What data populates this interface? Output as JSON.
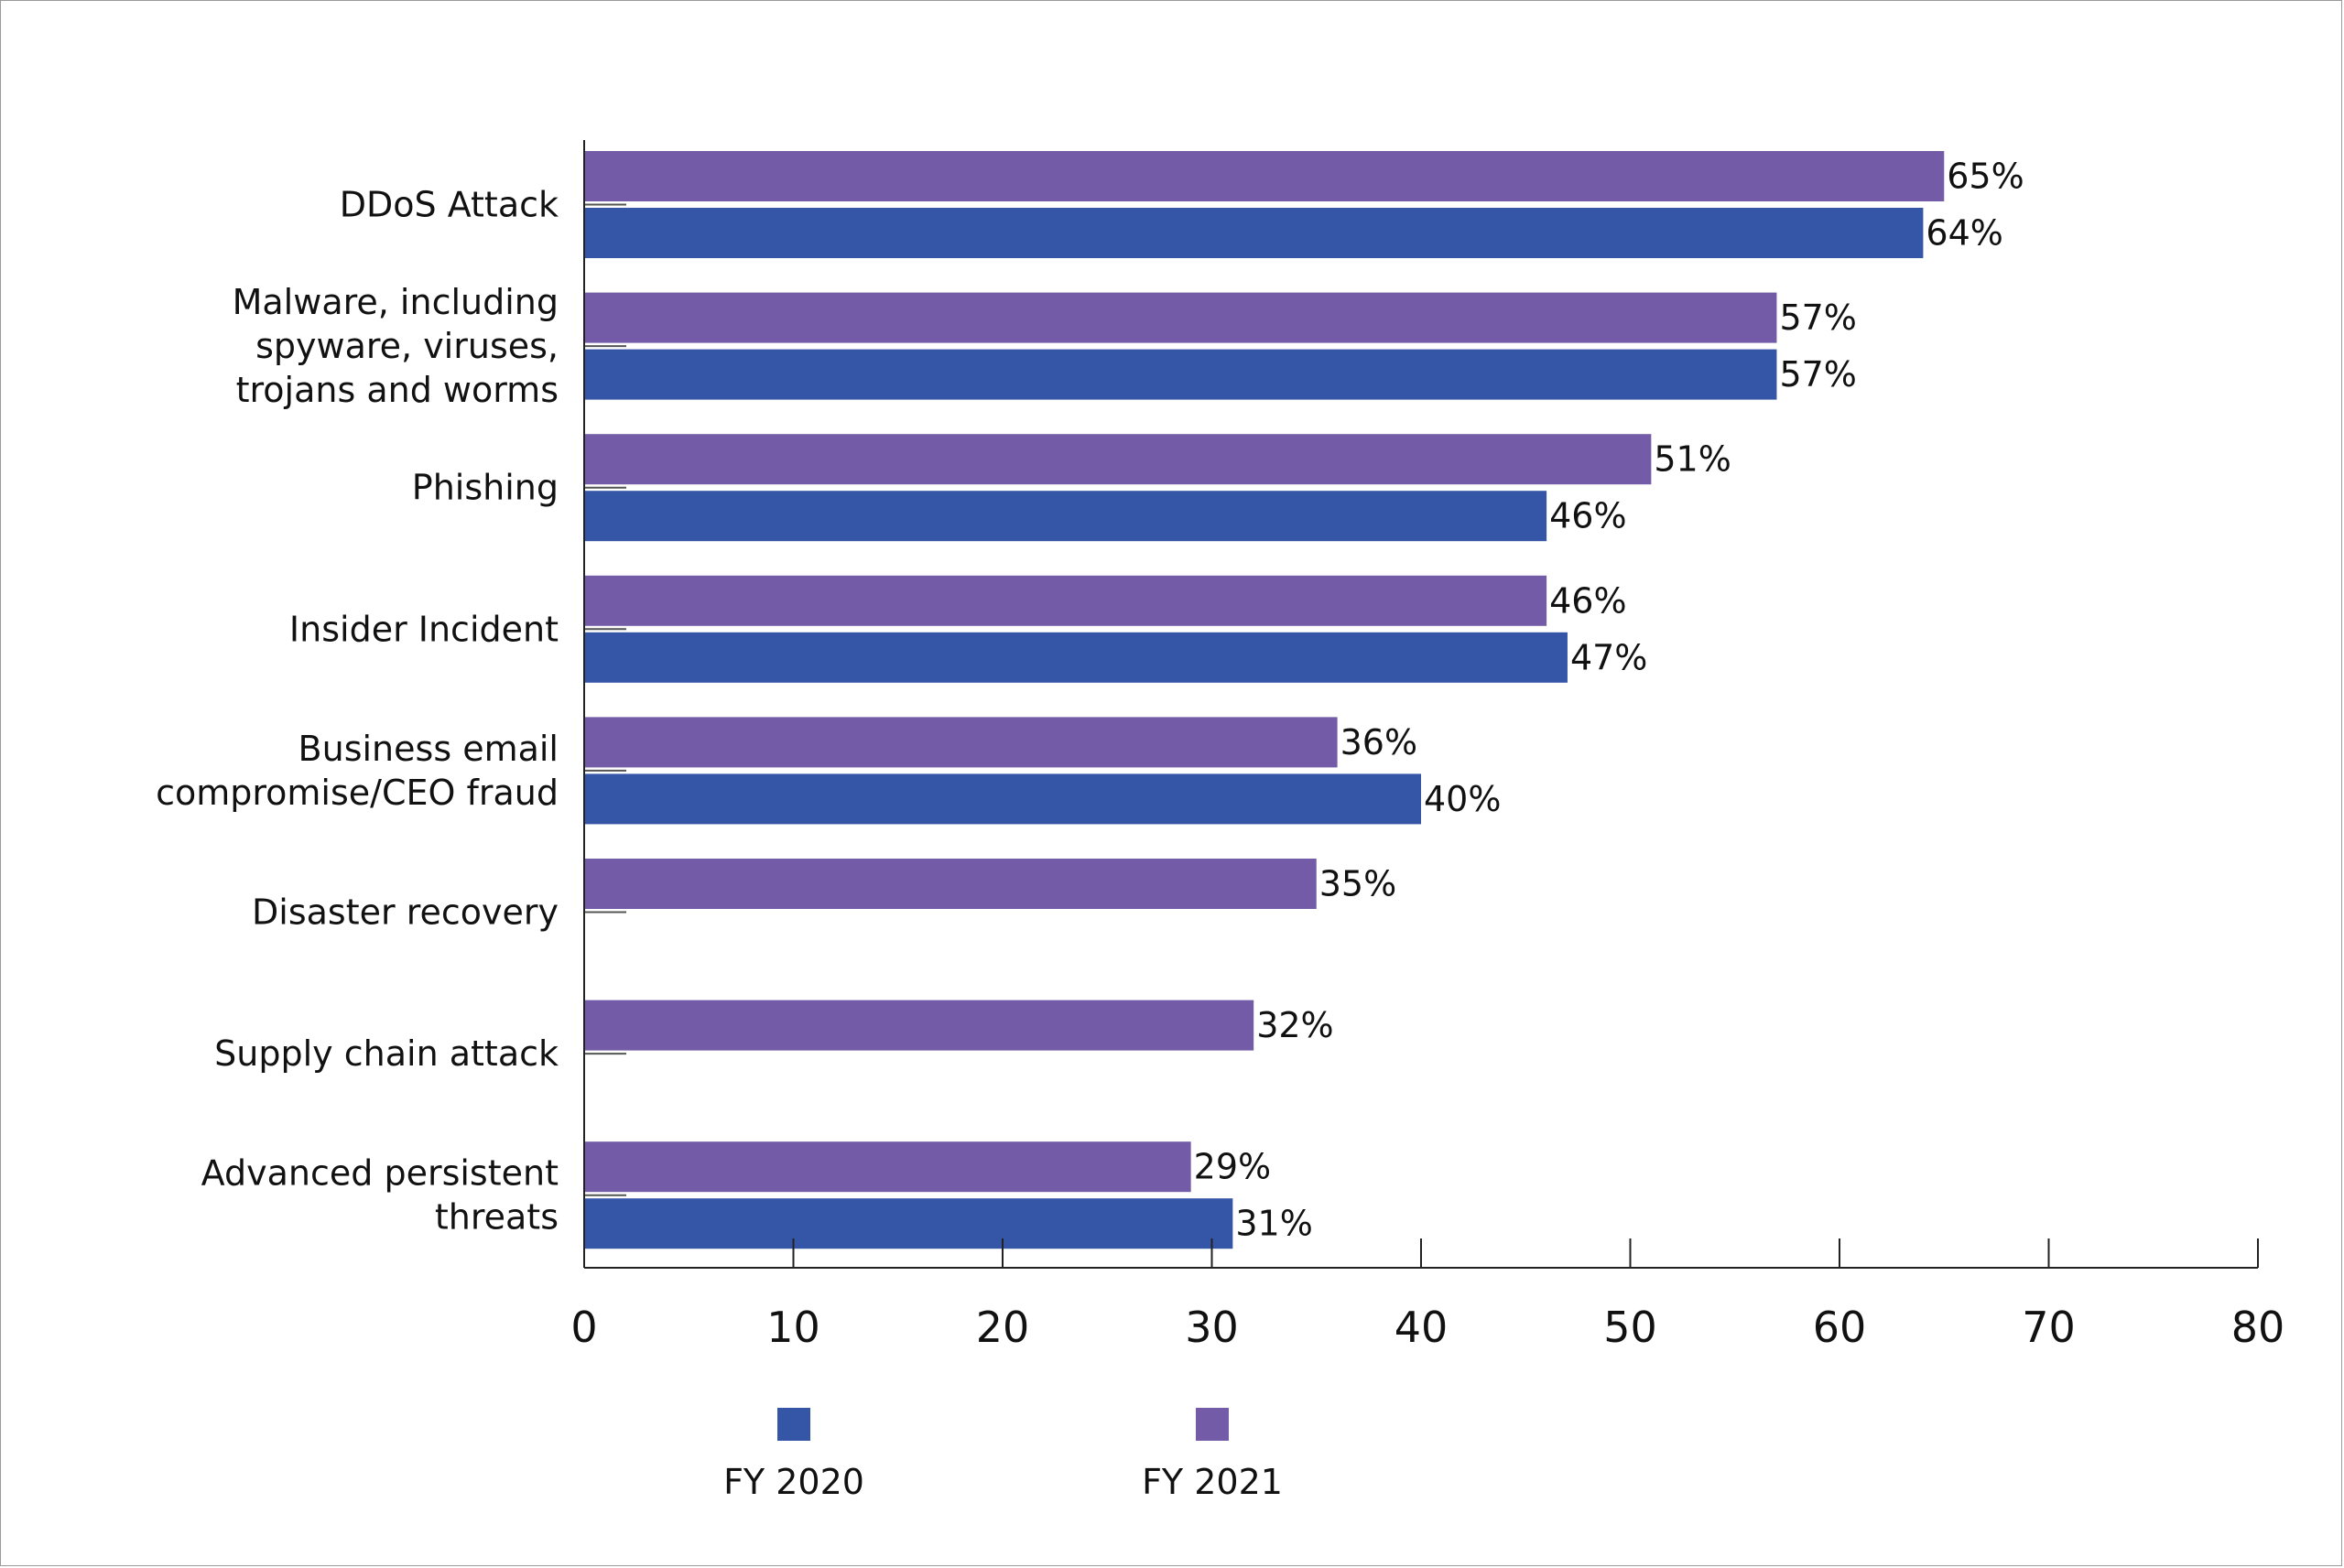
{
  "chart_data": {
    "type": "bar",
    "orientation": "horizontal",
    "categories": [
      [
        "DDoS Attack"
      ],
      [
        "Malware, including",
        "spyware, viruses,",
        "trojans and worms"
      ],
      [
        "Phishing"
      ],
      [
        "Insider Incident"
      ],
      [
        "Business email",
        "compromise/CEO fraud"
      ],
      [
        "Disaster recovery"
      ],
      [
        "Supply chain attack"
      ],
      [
        "Advanced persistent",
        "threats"
      ]
    ],
    "series": [
      {
        "name": "FY 2021",
        "color": "#745ba7",
        "values": [
          65,
          57,
          51,
          46,
          36,
          35,
          32,
          29
        ],
        "labels": [
          "65%",
          "57%",
          "51%",
          "46%",
          "36%",
          "35%",
          "32%",
          "29%"
        ]
      },
      {
        "name": "FY 2020",
        "color": "#3556a6",
        "values": [
          64,
          57,
          46,
          47,
          40,
          null,
          null,
          31
        ],
        "labels": [
          "64%",
          "57%",
          "46%",
          "47%",
          "40%",
          null,
          null,
          "31%"
        ]
      }
    ],
    "xlim": [
      0,
      80
    ],
    "xticks": [
      0,
      10,
      20,
      30,
      40,
      50,
      60,
      70,
      80
    ],
    "title": "",
    "xlabel": "",
    "ylabel": "",
    "grid": false,
    "legend": {
      "placement": "bottom",
      "items": [
        {
          "label": "FY 2020",
          "color": "#3556a6"
        },
        {
          "label": "FY 2021",
          "color": "#745ba7"
        }
      ]
    }
  }
}
